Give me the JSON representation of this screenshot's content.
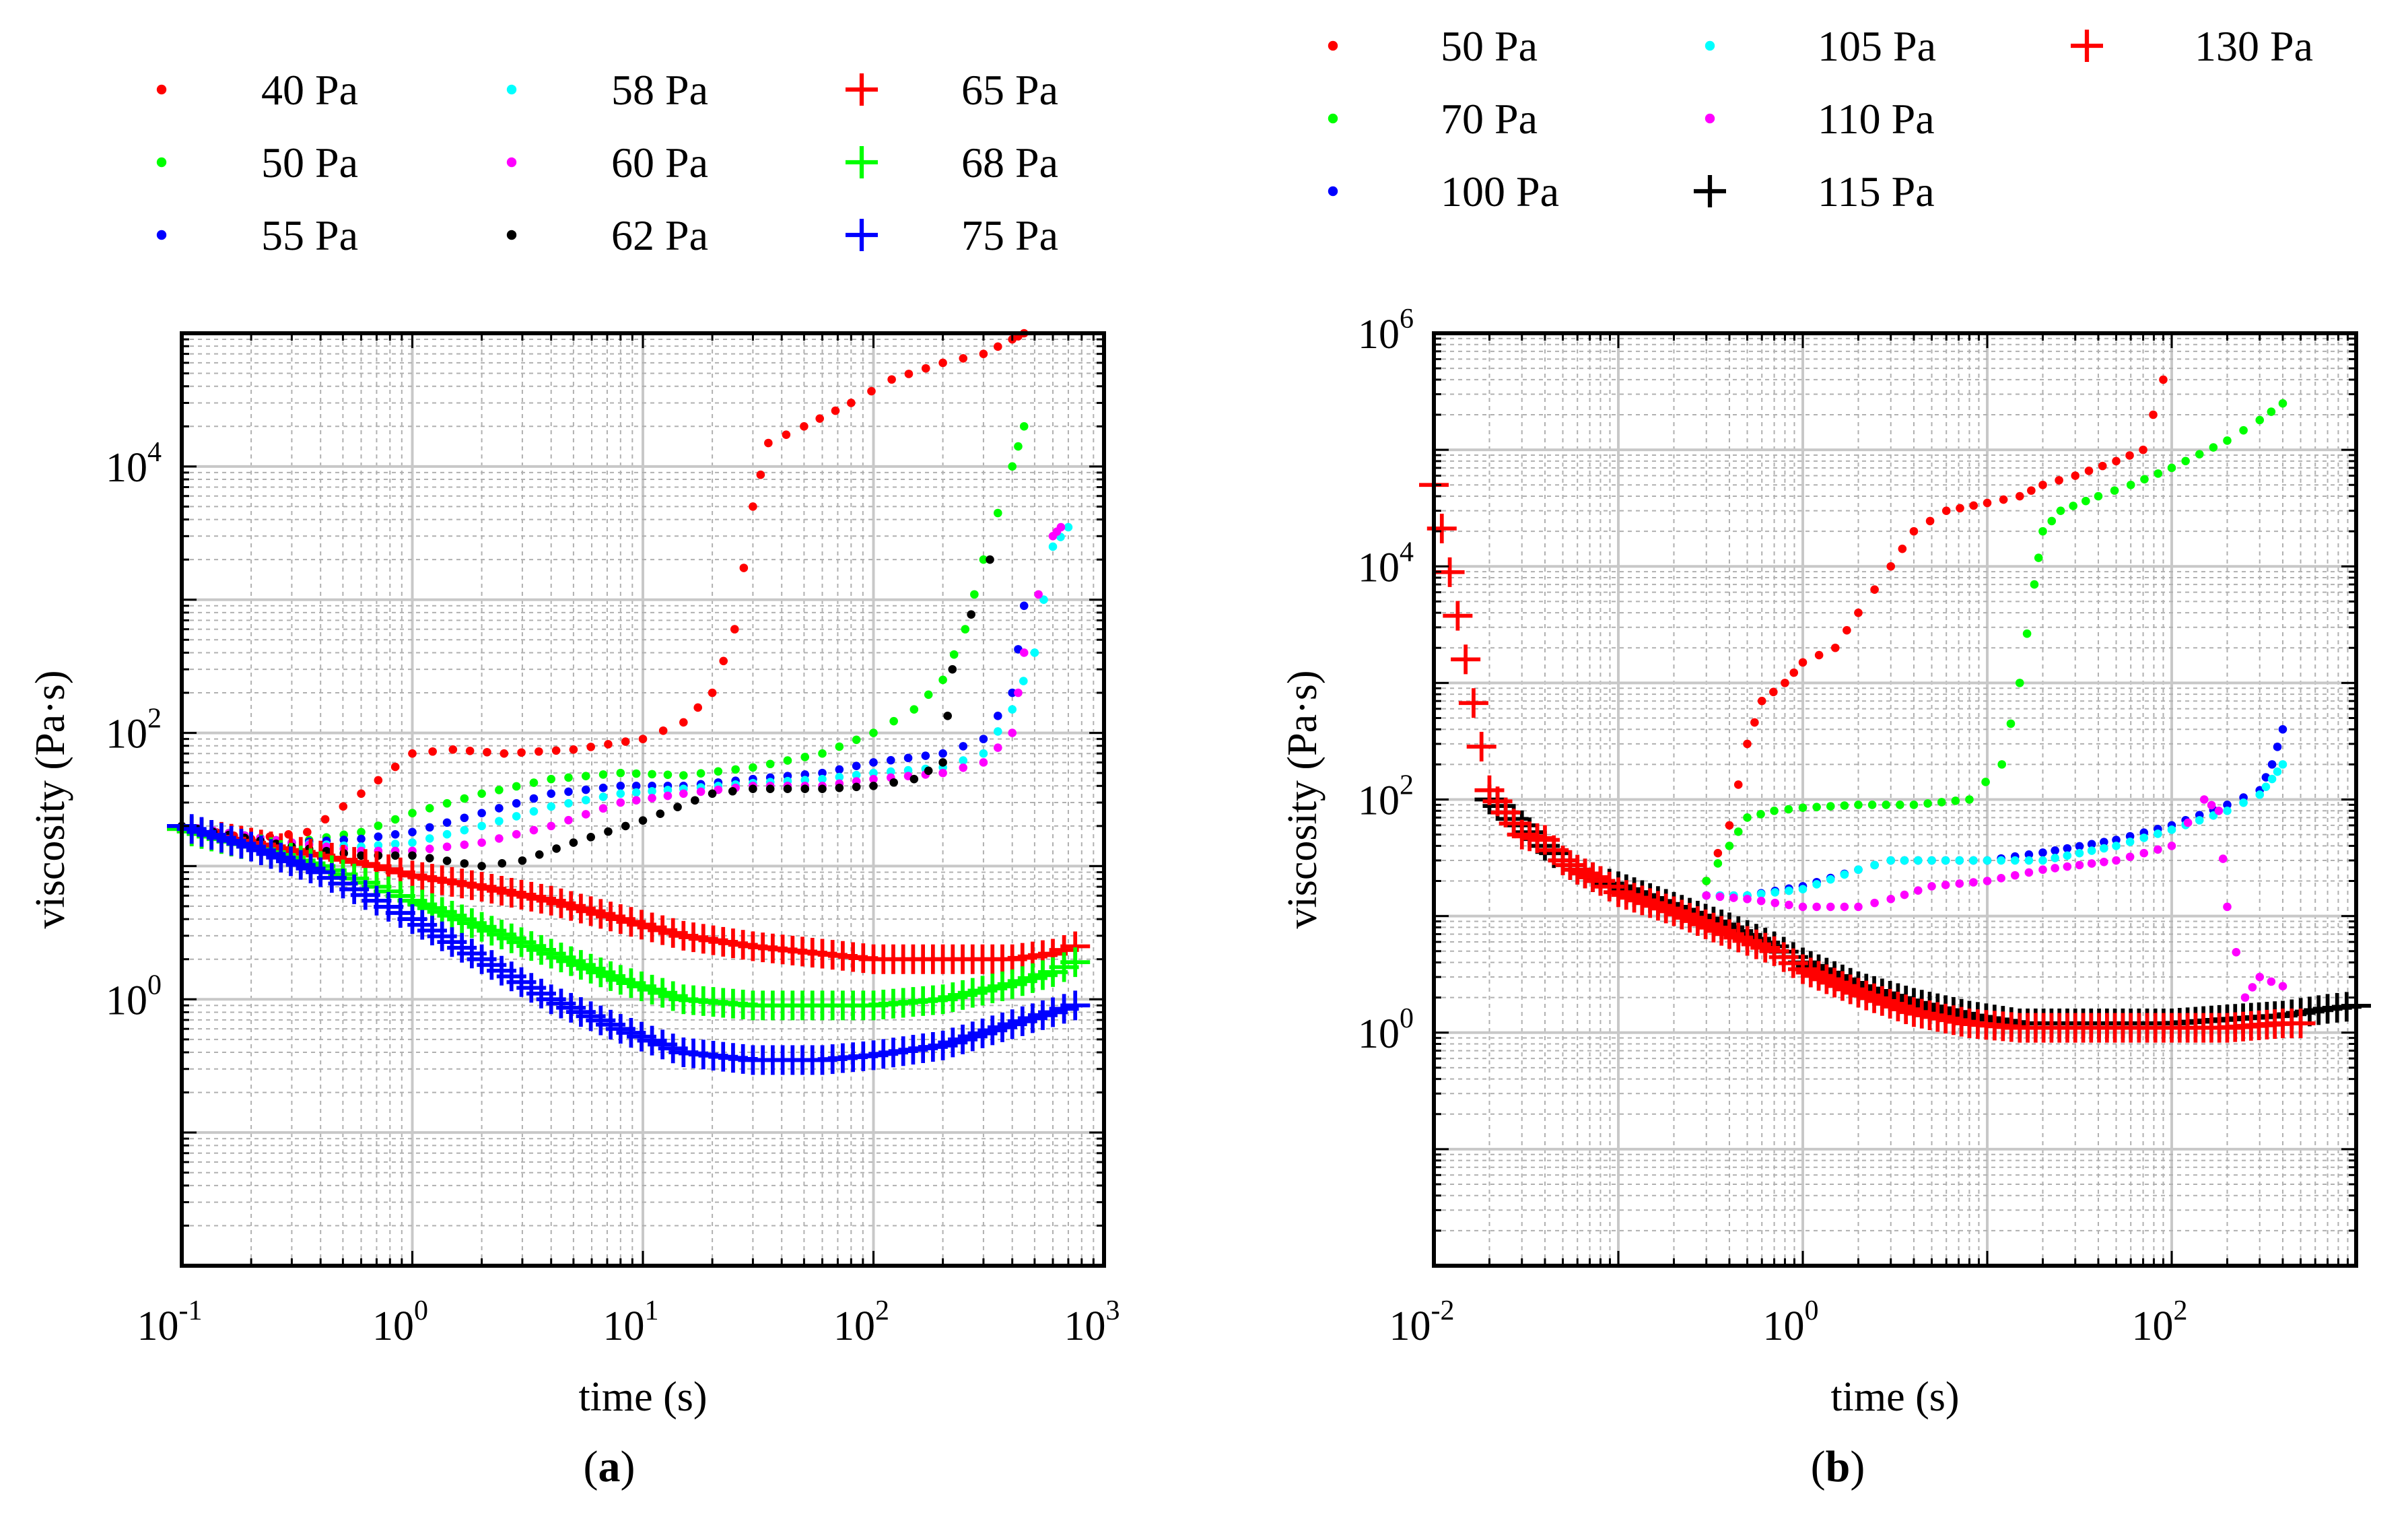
{
  "panel_labels": [
    {
      "open": "(",
      "letter": "a",
      "close": ")"
    },
    {
      "open": "(",
      "letter": "b",
      "close": ")"
    }
  ],
  "chart_data": [
    {
      "type": "scatter",
      "title": "",
      "xlabel": "time (s)",
      "ylabel": "viscosity (Pa·s)",
      "xscale": "log",
      "yscale": "log",
      "xlim": [
        0.1,
        1000
      ],
      "ylim": [
        0.01,
        100000
      ],
      "xticks": [
        {
          "base": "10",
          "exp": "-1",
          "value": 0.1
        },
        {
          "base": "10",
          "exp": "0",
          "value": 1
        },
        {
          "base": "10",
          "exp": "1",
          "value": 10
        },
        {
          "base": "10",
          "exp": "2",
          "value": 100
        },
        {
          "base": "10",
          "exp": "3",
          "value": 1000
        }
      ],
      "yticks": [
        {
          "base": "10",
          "exp": "0",
          "value": 1
        },
        {
          "base": "10",
          "exp": "2",
          "value": 100
        },
        {
          "base": "10",
          "exp": "4",
          "value": 10000
        }
      ],
      "grid": true,
      "legend_position": "top",
      "series": [
        {
          "name": "40 Pa",
          "color": "#ff0000",
          "marker": "dot",
          "x": [
            0.1,
            0.2,
            0.35,
            0.6,
            1.0,
            1.5,
            2.5,
            5,
            10,
            15,
            20,
            25,
            30,
            35,
            50,
            80,
            120,
            200,
            300,
            400,
            450
          ],
          "y": [
            20,
            16,
            18,
            35,
            70,
            75,
            70,
            75,
            90,
            120,
            200,
            600,
            5000,
            15000,
            20000,
            30000,
            45000,
            60000,
            70000,
            90000,
            100000
          ]
        },
        {
          "name": "50 Pa",
          "color": "#00ff00",
          "marker": "dot",
          "x": [
            0.1,
            0.3,
            0.6,
            1.0,
            2,
            4,
            8,
            15,
            30,
            60,
            100,
            150,
            200,
            250,
            300,
            400,
            450
          ],
          "y": [
            20,
            15,
            18,
            25,
            35,
            45,
            50,
            48,
            55,
            70,
            100,
            150,
            250,
            600,
            2000,
            10000,
            20000
          ]
        },
        {
          "name": "55 Pa",
          "color": "#0000ff",
          "marker": "dot",
          "x": [
            0.1,
            0.3,
            0.6,
            1,
            2,
            4,
            8,
            15,
            30,
            60,
            100,
            200,
            300,
            400,
            450
          ],
          "y": [
            20,
            15,
            16,
            18,
            25,
            35,
            40,
            40,
            45,
            50,
            60,
            70,
            90,
            200,
            900
          ]
        },
        {
          "name": "58 Pa",
          "color": "#00ffff",
          "marker": "dot",
          "x": [
            0.1,
            0.3,
            0.6,
            1,
            2,
            4,
            8,
            15,
            30,
            60,
            100,
            200,
            300,
            400,
            500,
            600,
            700
          ],
          "y": [
            20,
            15,
            14,
            15,
            20,
            28,
            35,
            38,
            42,
            45,
            50,
            55,
            70,
            150,
            400,
            2500,
            3500
          ]
        },
        {
          "name": "60 Pa",
          "color": "#ff00ff",
          "marker": "dot",
          "x": [
            0.1,
            0.3,
            0.6,
            1,
            2,
            4,
            8,
            15,
            30,
            60,
            100,
            200,
            300,
            400,
            450,
            600,
            650
          ],
          "y": [
            20,
            15,
            13,
            13,
            15,
            20,
            30,
            35,
            40,
            40,
            45,
            50,
            60,
            100,
            400,
            3000,
            3500
          ]
        },
        {
          "name": "62 Pa",
          "color": "#000000",
          "marker": "dot",
          "x": [
            0.1,
            0.3,
            0.6,
            1,
            2,
            3,
            5,
            10,
            20,
            30,
            60,
            100,
            150,
            200,
            220,
            320
          ],
          "y": [
            20,
            14,
            12,
            12,
            10,
            11,
            15,
            22,
            35,
            38,
            38,
            40,
            45,
            60,
            300,
            2000
          ]
        },
        {
          "name": "65 Pa",
          "color": "#ff0000",
          "marker": "plus",
          "x": [
            0.1,
            0.2,
            0.4,
            0.7,
            1,
            2,
            4,
            8,
            15,
            30,
            60,
            100,
            200,
            400,
            600,
            750
          ],
          "y": [
            19,
            15,
            12,
            10,
            8.5,
            7,
            5.5,
            4,
            3,
            2.5,
            2.2,
            2.0,
            2.0,
            2.0,
            2.2,
            2.5
          ]
        },
        {
          "name": "68 Pa",
          "color": "#00ff00",
          "marker": "plus",
          "x": [
            0.1,
            0.2,
            0.4,
            0.7,
            1,
            2,
            4,
            8,
            15,
            30,
            60,
            100,
            200,
            400,
            600,
            750
          ],
          "y": [
            19,
            14,
            10,
            7,
            5.5,
            3.5,
            2.2,
            1.4,
            1.0,
            0.9,
            0.9,
            0.9,
            1.0,
            1.3,
            1.6,
            1.9
          ]
        },
        {
          "name": "75 Pa",
          "color": "#0000ff",
          "marker": "plus",
          "x": [
            0.1,
            0.2,
            0.4,
            0.7,
            1,
            2,
            4,
            8,
            15,
            30,
            60,
            100,
            200,
            400,
            600,
            750
          ],
          "y": [
            20,
            14,
            9,
            5.5,
            4,
            2,
            1.0,
            0.6,
            0.4,
            0.35,
            0.35,
            0.38,
            0.45,
            0.65,
            0.8,
            0.9
          ]
        }
      ]
    },
    {
      "type": "scatter",
      "title": "",
      "xlabel": "time (s)",
      "ylabel": "viscosity (Pa·s)",
      "xscale": "log",
      "yscale": "log",
      "xlim": [
        0.01,
        1000
      ],
      "ylim": [
        0.01,
        1000000
      ],
      "xticks": [
        {
          "base": "10",
          "exp": "-2",
          "value": 0.01
        },
        {
          "base": "10",
          "exp": "0",
          "value": 1
        },
        {
          "base": "10",
          "exp": "2",
          "value": 100
        }
      ],
      "yticks": [
        {
          "base": "10",
          "exp": "0",
          "value": 1
        },
        {
          "base": "10",
          "exp": "2",
          "value": 100
        },
        {
          "base": "10",
          "exp": "4",
          "value": 10000
        },
        {
          "base": "10",
          "exp": "6",
          "value": 1000000
        }
      ],
      "grid": true,
      "legend_position": "top",
      "series": [
        {
          "name": "50 Pa",
          "color": "#ff0000",
          "marker": "dot",
          "x": [
            0.3,
            0.4,
            0.5,
            0.6,
            0.8,
            1,
            1.5,
            2,
            3,
            4,
            6,
            10,
            15,
            20,
            30,
            50,
            70,
            90
          ],
          "y": [
            20,
            60,
            300,
            700,
            1000,
            1500,
            2000,
            4000,
            10000,
            20000,
            30000,
            35000,
            40000,
            50000,
            60000,
            80000,
            100000,
            400000
          ]
        },
        {
          "name": "70 Pa",
          "color": "#00ff00",
          "marker": "dot",
          "x": [
            0.3,
            0.4,
            0.5,
            0.7,
            1,
            2,
            4,
            8,
            12,
            15,
            18,
            20,
            25,
            40,
            60,
            100,
            200,
            300,
            400
          ],
          "y": [
            20,
            40,
            70,
            80,
            85,
            90,
            90,
            100,
            200,
            1000,
            7000,
            20000,
            30000,
            40000,
            50000,
            70000,
            120000,
            180000,
            250000
          ]
        },
        {
          "name": "100 Pa",
          "color": "#0000ff",
          "marker": "dot",
          "x": [
            0.3,
            0.5,
            1,
            2,
            3,
            5,
            10,
            20,
            50,
            100,
            200,
            300,
            350,
            400
          ],
          "y": [
            15,
            15,
            18,
            25,
            30,
            30,
            30,
            35,
            45,
            60,
            90,
            120,
            200,
            400
          ]
        },
        {
          "name": "105 Pa",
          "color": "#00ffff",
          "marker": "dot",
          "x": [
            0.3,
            0.5,
            1,
            2,
            3,
            5,
            10,
            20,
            50,
            100,
            200,
            300,
            350,
            400
          ],
          "y": [
            15,
            15,
            17,
            25,
            30,
            30,
            30,
            30,
            40,
            55,
            80,
            110,
            150,
            200
          ]
        },
        {
          "name": "110 Pa",
          "color": "#ff00ff",
          "marker": "dot",
          "x": [
            0.3,
            0.5,
            1,
            2,
            3,
            5,
            10,
            20,
            50,
            100,
            150,
            180,
            200,
            250,
            300,
            400
          ],
          "y": [
            15,
            14,
            12,
            12,
            14,
            18,
            20,
            25,
            30,
            40,
            100,
            80,
            12,
            2,
            3,
            2.5
          ]
        },
        {
          "name": "115 Pa",
          "color": "#000000",
          "marker": "plus",
          "x": [
            0.02,
            0.03,
            0.04,
            0.05,
            0.06,
            0.08,
            0.1,
            0.2,
            0.4,
            0.7,
            1,
            2,
            4,
            8,
            15,
            30,
            60,
            100,
            200,
            400,
            700,
            1000
          ],
          "y": [
            100,
            60,
            40,
            30,
            25,
            20,
            18,
            12,
            8,
            5.5,
            4,
            2.5,
            1.8,
            1.4,
            1.2,
            1.2,
            1.2,
            1.2,
            1.3,
            1.4,
            1.6,
            1.7
          ]
        },
        {
          "name": "130 Pa",
          "color": "#ff0000",
          "marker": "plus",
          "x": [
            0.01,
            0.02,
            0.03,
            0.04,
            0.05,
            0.06,
            0.08,
            0.1,
            0.2,
            0.4,
            0.7,
            1,
            2,
            4,
            8,
            15,
            30,
            60,
            100,
            200,
            400,
            500
          ],
          "y": [
            50000,
            120,
            50,
            45,
            30,
            25,
            20,
            16,
            11,
            7,
            5,
            3.5,
            2.2,
            1.5,
            1.2,
            1.1,
            1.1,
            1.1,
            1.1,
            1.1,
            1.2,
            1.2
          ]
        }
      ]
    }
  ]
}
